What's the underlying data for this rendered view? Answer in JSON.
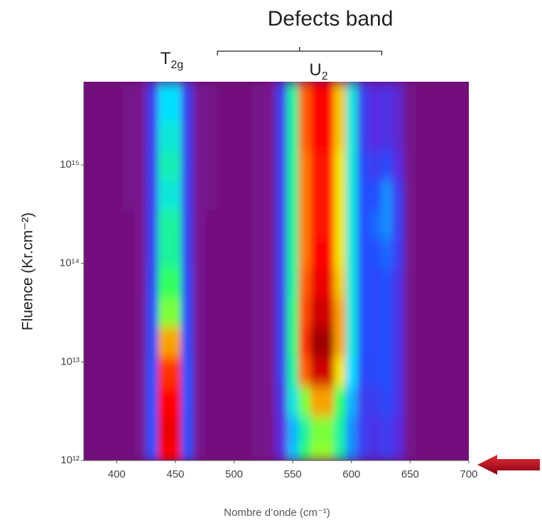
{
  "chart_data": {
    "type": "heatmap",
    "title": "Defects band",
    "annotations": [
      {
        "text": "T",
        "sub": "2g",
        "at": 447
      },
      {
        "text": "U",
        "sub": "2",
        "at": 572
      }
    ],
    "bracket": [
      530,
      630
    ],
    "x_label": "Nombre d’onde (cm⁻¹)",
    "y_label": "Fluence (Kr.cm⁻²)",
    "xlim": [
      372,
      700
    ],
    "xticks": [
      400,
      450,
      500,
      550,
      600,
      650,
      700
    ],
    "ylim": [
      1000000000000.0,
      7000000000000000.0
    ],
    "log_y": true,
    "yticks": [
      {
        "value": 1000000000000.0,
        "label": "10¹²"
      },
      {
        "value": 10000000000000.0,
        "label": "10¹³"
      },
      {
        "value": 100000000000000.0,
        "label": "10¹⁴"
      },
      {
        "value": 1000000000000000.0,
        "label": "10¹⁵"
      }
    ],
    "colorscale": [
      [
        0,
        "#6e0c6e"
      ],
      [
        0.12,
        "#7a1896"
      ],
      [
        0.2,
        "#5a2ae0"
      ],
      [
        0.3,
        "#2050ff"
      ],
      [
        0.42,
        "#00e0ff"
      ],
      [
        0.55,
        "#30ff60"
      ],
      [
        0.68,
        "#f0ff00"
      ],
      [
        0.8,
        "#ff6000"
      ],
      [
        0.9,
        "#ff0000"
      ],
      [
        1,
        "#a00000"
      ]
    ],
    "x": [
      380,
      390,
      400,
      410,
      420,
      430,
      440,
      450,
      460,
      470,
      480,
      490,
      500,
      510,
      520,
      530,
      540,
      550,
      560,
      570,
      580,
      590,
      600,
      610,
      620,
      630,
      640,
      650,
      660,
      670,
      680,
      690,
      700
    ],
    "y": [
      1000000000000.0,
      2000000000000.0,
      4000000000000.0,
      8000000000000.0,
      16000000000000.0,
      32000000000000.0,
      63000000000000.0,
      130000000000000.0,
      250000000000000.0,
      500000000000000.0,
      1000000000000000.0,
      2000000000000000.0,
      4000000000000000.0
    ],
    "z": [
      [
        0.05,
        0.05,
        0.05,
        0.05,
        0.1,
        0.3,
        0.9,
        0.9,
        0.3,
        0.1,
        0.05,
        0.05,
        0.05,
        0.05,
        0.08,
        0.1,
        0.2,
        0.4,
        0.55,
        0.62,
        0.62,
        0.5,
        0.35,
        0.25,
        0.22,
        0.25,
        0.2,
        0.08,
        0.05,
        0.05,
        0.05,
        0.05,
        0.05
      ],
      [
        0.05,
        0.05,
        0.05,
        0.05,
        0.1,
        0.3,
        0.92,
        0.92,
        0.3,
        0.1,
        0.05,
        0.05,
        0.05,
        0.05,
        0.08,
        0.1,
        0.2,
        0.38,
        0.5,
        0.6,
        0.6,
        0.5,
        0.35,
        0.25,
        0.22,
        0.25,
        0.2,
        0.08,
        0.05,
        0.05,
        0.05,
        0.05,
        0.05
      ],
      [
        0.05,
        0.05,
        0.05,
        0.05,
        0.1,
        0.3,
        0.9,
        0.9,
        0.3,
        0.1,
        0.05,
        0.05,
        0.05,
        0.05,
        0.08,
        0.1,
        0.22,
        0.45,
        0.6,
        0.75,
        0.75,
        0.55,
        0.38,
        0.25,
        0.25,
        0.28,
        0.22,
        0.08,
        0.05,
        0.05,
        0.05,
        0.05,
        0.05
      ],
      [
        0.05,
        0.05,
        0.05,
        0.05,
        0.1,
        0.3,
        0.85,
        0.85,
        0.3,
        0.1,
        0.05,
        0.05,
        0.05,
        0.05,
        0.08,
        0.1,
        0.25,
        0.5,
        0.8,
        0.95,
        0.95,
        0.7,
        0.42,
        0.28,
        0.28,
        0.3,
        0.22,
        0.08,
        0.05,
        0.05,
        0.05,
        0.05,
        0.05
      ],
      [
        0.05,
        0.05,
        0.05,
        0.05,
        0.1,
        0.28,
        0.75,
        0.75,
        0.28,
        0.1,
        0.05,
        0.05,
        0.05,
        0.05,
        0.08,
        0.1,
        0.25,
        0.52,
        0.85,
        1,
        1,
        0.75,
        0.45,
        0.3,
        0.28,
        0.3,
        0.22,
        0.08,
        0.05,
        0.05,
        0.05,
        0.05,
        0.05
      ],
      [
        0.05,
        0.05,
        0.05,
        0.05,
        0.1,
        0.28,
        0.6,
        0.6,
        0.28,
        0.1,
        0.05,
        0.05,
        0.05,
        0.05,
        0.08,
        0.1,
        0.25,
        0.52,
        0.82,
        0.95,
        0.95,
        0.75,
        0.45,
        0.3,
        0.28,
        0.3,
        0.22,
        0.08,
        0.05,
        0.05,
        0.05,
        0.05,
        0.05
      ],
      [
        0.05,
        0.05,
        0.05,
        0.05,
        0.1,
        0.27,
        0.55,
        0.55,
        0.27,
        0.1,
        0.05,
        0.05,
        0.05,
        0.05,
        0.08,
        0.1,
        0.25,
        0.5,
        0.8,
        0.92,
        0.92,
        0.72,
        0.45,
        0.3,
        0.28,
        0.3,
        0.22,
        0.08,
        0.05,
        0.05,
        0.05,
        0.05,
        0.05
      ],
      [
        0.05,
        0.05,
        0.05,
        0.05,
        0.1,
        0.26,
        0.5,
        0.5,
        0.26,
        0.1,
        0.05,
        0.05,
        0.05,
        0.05,
        0.08,
        0.1,
        0.25,
        0.5,
        0.78,
        0.9,
        0.9,
        0.7,
        0.45,
        0.3,
        0.3,
        0.32,
        0.25,
        0.08,
        0.05,
        0.05,
        0.05,
        0.05,
        0.05
      ],
      [
        0.05,
        0.05,
        0.05,
        0.05,
        0.1,
        0.26,
        0.5,
        0.5,
        0.26,
        0.1,
        0.05,
        0.05,
        0.05,
        0.05,
        0.08,
        0.1,
        0.25,
        0.5,
        0.78,
        0.88,
        0.88,
        0.7,
        0.45,
        0.3,
        0.32,
        0.35,
        0.25,
        0.08,
        0.05,
        0.05,
        0.05,
        0.05,
        0.05
      ],
      [
        0.05,
        0.05,
        0.05,
        0.08,
        0.1,
        0.25,
        0.45,
        0.45,
        0.25,
        0.1,
        0.08,
        0.05,
        0.05,
        0.05,
        0.08,
        0.1,
        0.25,
        0.5,
        0.78,
        0.88,
        0.88,
        0.7,
        0.45,
        0.3,
        0.3,
        0.35,
        0.25,
        0.08,
        0.05,
        0.05,
        0.05,
        0.05,
        0.05
      ],
      [
        0.05,
        0.05,
        0.05,
        0.08,
        0.1,
        0.26,
        0.48,
        0.48,
        0.26,
        0.1,
        0.08,
        0.05,
        0.05,
        0.05,
        0.08,
        0.1,
        0.25,
        0.5,
        0.78,
        0.88,
        0.88,
        0.7,
        0.45,
        0.28,
        0.25,
        0.28,
        0.2,
        0.08,
        0.05,
        0.05,
        0.05,
        0.05,
        0.05
      ],
      [
        0.05,
        0.05,
        0.05,
        0.08,
        0.1,
        0.25,
        0.45,
        0.45,
        0.25,
        0.1,
        0.08,
        0.05,
        0.05,
        0.05,
        0.08,
        0.1,
        0.25,
        0.5,
        0.8,
        0.9,
        0.9,
        0.72,
        0.45,
        0.25,
        0.2,
        0.22,
        0.18,
        0.08,
        0.05,
        0.05,
        0.05,
        0.05,
        0.05
      ],
      [
        0.05,
        0.05,
        0.05,
        0.08,
        0.1,
        0.25,
        0.42,
        0.42,
        0.25,
        0.1,
        0.08,
        0.05,
        0.05,
        0.05,
        0.08,
        0.1,
        0.25,
        0.5,
        0.8,
        0.9,
        0.9,
        0.72,
        0.45,
        0.25,
        0.2,
        0.22,
        0.18,
        0.08,
        0.05,
        0.05,
        0.05,
        0.05,
        0.05
      ]
    ]
  }
}
